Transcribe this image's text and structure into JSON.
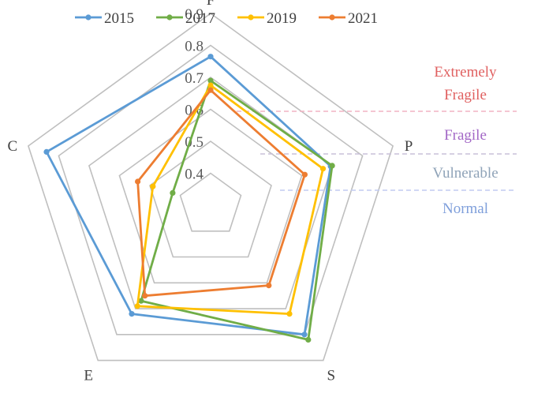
{
  "chart_data": {
    "type": "radar",
    "axes": [
      "F",
      "P",
      "S",
      "E",
      "C"
    ],
    "rlim": [
      0.3,
      0.9
    ],
    "ticks": [
      "0.9",
      "0.8",
      "0.7",
      "0.6",
      "0.5",
      "0.4"
    ],
    "grid": true,
    "legend_position": "top",
    "series": [
      {
        "name": "2015",
        "color": "#5B9BD5",
        "values": [
          0.765,
          0.695,
          0.8,
          0.72,
          0.84
        ]
      },
      {
        "name": "2017",
        "color": "#70AD47",
        "values": [
          0.69,
          0.7,
          0.82,
          0.67,
          0.425
        ]
      },
      {
        "name": "2019",
        "color": "#FFC000",
        "values": [
          0.675,
          0.67,
          0.72,
          0.69,
          0.49
        ]
      },
      {
        "name": "2021",
        "color": "#ED7D31",
        "values": [
          0.66,
          0.61,
          0.61,
          0.65,
          0.54
        ]
      }
    ],
    "zones": [
      {
        "label_lines": [
          "Extremely",
          "Fragile"
        ],
        "color": "#E06060"
      },
      {
        "label_lines": [
          "Fragile"
        ],
        "color": "#A368C6"
      },
      {
        "label_lines": [
          "Vulnerable"
        ],
        "color": "#8FA3B8"
      },
      {
        "label_lines": [
          "Normal"
        ],
        "color": "#7F9FDB"
      }
    ],
    "zone_divider_colors": [
      "#F2B3C3",
      "#C9C0D9",
      "#C2CCF0"
    ]
  }
}
